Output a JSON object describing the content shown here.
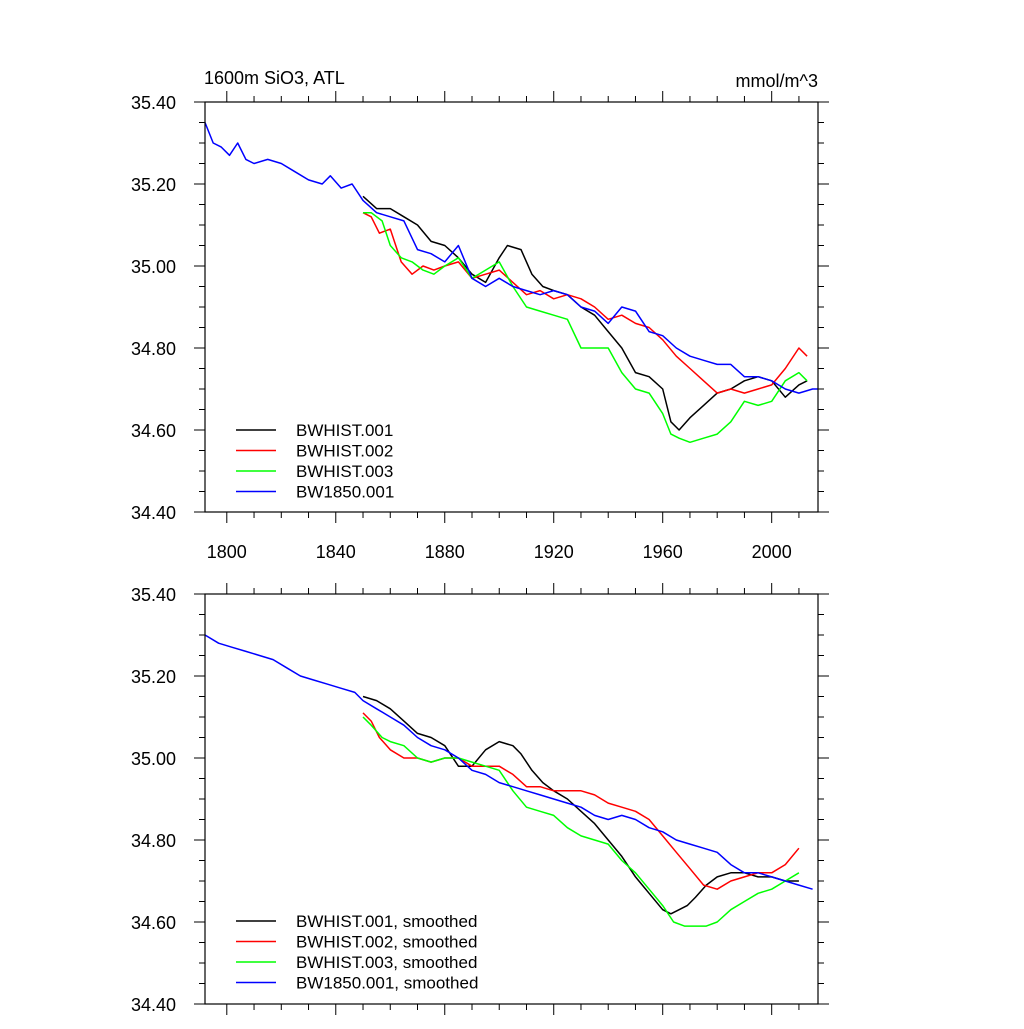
{
  "chart_data": [
    {
      "type": "line",
      "title_left": "1600m SiO3, ATL",
      "title_right": "mmol/m^3",
      "xlim": [
        1792,
        2017
      ],
      "ylim": [
        34.4,
        35.4
      ],
      "xticks": [
        1800,
        1840,
        1880,
        1920,
        1960,
        2000
      ],
      "xtick_labels": [
        "1800",
        "1840",
        "1880",
        "1920",
        "1960",
        "2000"
      ],
      "yticks": [
        34.4,
        34.6,
        34.8,
        35.0,
        35.2,
        35.4
      ],
      "ytick_labels": [
        "34.40",
        "34.60",
        "34.80",
        "35.00",
        "35.20",
        "35.40"
      ],
      "legend_position": "bottom-left",
      "series": [
        {
          "name": "BWHIST.001",
          "color": "#000000",
          "x": [
            1850,
            1855,
            1860,
            1865,
            1870,
            1875,
            1880,
            1885,
            1890,
            1895,
            1900,
            1903,
            1908,
            1912,
            1916,
            1920,
            1925,
            1930,
            1935,
            1940,
            1945,
            1950,
            1955,
            1960,
            1963,
            1966,
            1970,
            1975,
            1980,
            1985,
            1990,
            1995,
            2000,
            2005,
            2010,
            2013
          ],
          "y": [
            35.17,
            35.14,
            35.14,
            35.12,
            35.1,
            35.06,
            35.05,
            35.02,
            34.98,
            34.96,
            35.02,
            35.05,
            35.04,
            34.98,
            34.95,
            34.94,
            34.93,
            34.9,
            34.88,
            34.84,
            34.8,
            34.74,
            34.73,
            34.7,
            34.62,
            34.6,
            34.63,
            34.66,
            34.69,
            34.7,
            34.72,
            34.73,
            34.72,
            34.68,
            34.71,
            34.72
          ]
        },
        {
          "name": "BWHIST.002",
          "color": "#ff0000",
          "x": [
            1850,
            1853,
            1856,
            1860,
            1864,
            1868,
            1872,
            1876,
            1880,
            1885,
            1890,
            1895,
            1900,
            1905,
            1910,
            1915,
            1920,
            1925,
            1930,
            1935,
            1940,
            1945,
            1950,
            1955,
            1960,
            1965,
            1970,
            1975,
            1980,
            1985,
            1990,
            1995,
            2000,
            2005,
            2010,
            2013
          ],
          "y": [
            35.13,
            35.12,
            35.08,
            35.09,
            35.01,
            34.98,
            35.0,
            34.99,
            35.0,
            35.01,
            34.97,
            34.98,
            34.99,
            34.96,
            34.93,
            34.94,
            34.92,
            34.93,
            34.92,
            34.9,
            34.87,
            34.88,
            34.86,
            34.85,
            34.82,
            34.78,
            34.75,
            34.72,
            34.69,
            34.7,
            34.69,
            34.7,
            34.71,
            34.75,
            34.8,
            34.78
          ]
        },
        {
          "name": "BWHIST.003",
          "color": "#00ff00",
          "x": [
            1850,
            1853,
            1857,
            1860,
            1864,
            1868,
            1872,
            1876,
            1880,
            1885,
            1890,
            1895,
            1900,
            1905,
            1910,
            1915,
            1920,
            1925,
            1930,
            1935,
            1940,
            1945,
            1950,
            1955,
            1960,
            1963,
            1966,
            1970,
            1975,
            1980,
            1985,
            1990,
            1995,
            2000,
            2005,
            2010,
            2013
          ],
          "y": [
            35.13,
            35.13,
            35.11,
            35.05,
            35.02,
            35.01,
            34.99,
            34.98,
            35.0,
            35.02,
            34.97,
            34.99,
            35.01,
            34.95,
            34.9,
            34.89,
            34.88,
            34.87,
            34.8,
            34.8,
            34.8,
            34.74,
            34.7,
            34.69,
            34.64,
            34.59,
            34.58,
            34.57,
            34.58,
            34.59,
            34.62,
            34.67,
            34.66,
            34.67,
            34.72,
            34.74,
            34.72
          ]
        },
        {
          "name": "BW1850.001",
          "color": "#0000ff",
          "x": [
            1792,
            1795,
            1798,
            1801,
            1804,
            1807,
            1810,
            1815,
            1820,
            1825,
            1830,
            1835,
            1838,
            1842,
            1846,
            1850,
            1855,
            1860,
            1865,
            1870,
            1875,
            1880,
            1885,
            1890,
            1895,
            1900,
            1905,
            1910,
            1915,
            1920,
            1925,
            1930,
            1935,
            1940,
            1945,
            1950,
            1955,
            1960,
            1965,
            1970,
            1975,
            1980,
            1985,
            1990,
            1995,
            2000,
            2005,
            2010,
            2015,
            2017
          ],
          "y": [
            35.35,
            35.3,
            35.29,
            35.27,
            35.3,
            35.26,
            35.25,
            35.26,
            35.25,
            35.23,
            35.21,
            35.2,
            35.22,
            35.19,
            35.2,
            35.16,
            35.13,
            35.12,
            35.11,
            35.04,
            35.03,
            35.01,
            35.05,
            34.97,
            34.95,
            34.97,
            34.95,
            34.94,
            34.93,
            34.94,
            34.93,
            34.9,
            34.89,
            34.86,
            34.9,
            34.89,
            34.84,
            34.83,
            34.8,
            34.78,
            34.77,
            34.76,
            34.76,
            34.73,
            34.73,
            34.72,
            34.7,
            34.69,
            34.7,
            34.7
          ]
        }
      ]
    },
    {
      "type": "line",
      "title_left": "",
      "title_right": "",
      "xlim": [
        1792,
        2017
      ],
      "ylim": [
        34.4,
        35.4
      ],
      "xticks": [
        1800,
        1840,
        1880,
        1920,
        1960,
        2000
      ],
      "xtick_labels": [],
      "yticks": [
        34.4,
        34.6,
        34.8,
        35.0,
        35.2,
        35.4
      ],
      "ytick_labels": [
        "34.40",
        "34.60",
        "34.80",
        "35.00",
        "35.20",
        "35.40"
      ],
      "legend_position": "bottom-left",
      "series": [
        {
          "name": "BWHIST.001, smoothed",
          "color": "#000000",
          "x": [
            1850,
            1855,
            1860,
            1865,
            1870,
            1875,
            1880,
            1885,
            1890,
            1895,
            1900,
            1905,
            1908,
            1912,
            1916,
            1920,
            1925,
            1930,
            1935,
            1940,
            1945,
            1950,
            1955,
            1960,
            1963,
            1966,
            1969,
            1972,
            1976,
            1980,
            1985,
            1990,
            1995,
            2000,
            2005,
            2010
          ],
          "y": [
            35.15,
            35.14,
            35.12,
            35.09,
            35.06,
            35.05,
            35.03,
            34.98,
            34.98,
            35.02,
            35.04,
            35.03,
            35.01,
            34.97,
            34.94,
            34.92,
            34.9,
            34.87,
            34.84,
            34.8,
            34.76,
            34.71,
            34.67,
            34.63,
            34.62,
            34.63,
            34.64,
            34.66,
            34.69,
            34.71,
            34.72,
            34.72,
            34.71,
            34.71,
            34.7,
            34.7
          ]
        },
        {
          "name": "BWHIST.002, smoothed",
          "color": "#ff0000",
          "x": [
            1850,
            1853,
            1856,
            1860,
            1865,
            1870,
            1875,
            1880,
            1885,
            1890,
            1895,
            1900,
            1905,
            1910,
            1915,
            1920,
            1925,
            1930,
            1935,
            1940,
            1945,
            1950,
            1955,
            1960,
            1965,
            1970,
            1975,
            1980,
            1985,
            1990,
            1995,
            2000,
            2005,
            2010
          ],
          "y": [
            35.11,
            35.09,
            35.05,
            35.02,
            35.0,
            35.0,
            34.99,
            35.0,
            35.0,
            34.98,
            34.98,
            34.98,
            34.96,
            34.93,
            34.93,
            34.92,
            34.92,
            34.92,
            34.91,
            34.89,
            34.88,
            34.87,
            34.85,
            34.81,
            34.77,
            34.73,
            34.69,
            34.68,
            34.7,
            34.71,
            34.72,
            34.72,
            34.74,
            34.78
          ]
        },
        {
          "name": "BWHIST.003, smoothed",
          "color": "#00ff00",
          "x": [
            1850,
            1853,
            1857,
            1860,
            1865,
            1870,
            1875,
            1880,
            1885,
            1890,
            1895,
            1900,
            1905,
            1910,
            1915,
            1920,
            1925,
            1930,
            1935,
            1940,
            1945,
            1950,
            1955,
            1960,
            1964,
            1968,
            1972,
            1976,
            1980,
            1985,
            1990,
            1995,
            2000,
            2005,
            2010
          ],
          "y": [
            35.1,
            35.08,
            35.05,
            35.04,
            35.03,
            35.0,
            34.99,
            35.0,
            35.0,
            34.99,
            34.98,
            34.97,
            34.92,
            34.88,
            34.87,
            34.86,
            34.83,
            34.81,
            34.8,
            34.79,
            34.75,
            34.72,
            34.68,
            34.64,
            34.6,
            34.59,
            34.59,
            34.59,
            34.6,
            34.63,
            34.65,
            34.67,
            34.68,
            34.7,
            34.72
          ]
        },
        {
          "name": "BW1850.001, smoothed",
          "color": "#0000ff",
          "x": [
            1792,
            1797,
            1802,
            1807,
            1812,
            1817,
            1822,
            1827,
            1832,
            1837,
            1842,
            1847,
            1850,
            1855,
            1860,
            1865,
            1870,
            1875,
            1880,
            1885,
            1890,
            1895,
            1900,
            1905,
            1910,
            1915,
            1920,
            1925,
            1930,
            1935,
            1940,
            1945,
            1950,
            1955,
            1960,
            1965,
            1970,
            1975,
            1980,
            1985,
            1990,
            1995,
            2000,
            2005,
            2010,
            2015
          ],
          "y": [
            35.3,
            35.28,
            35.27,
            35.26,
            35.25,
            35.24,
            35.22,
            35.2,
            35.19,
            35.18,
            35.17,
            35.16,
            35.14,
            35.12,
            35.1,
            35.08,
            35.05,
            35.03,
            35.02,
            35.0,
            34.97,
            34.96,
            34.94,
            34.93,
            34.92,
            34.91,
            34.9,
            34.89,
            34.88,
            34.86,
            34.85,
            34.86,
            34.85,
            34.83,
            34.82,
            34.8,
            34.79,
            34.78,
            34.77,
            34.74,
            34.72,
            34.72,
            34.71,
            34.7,
            34.69,
            34.68
          ]
        }
      ]
    }
  ]
}
